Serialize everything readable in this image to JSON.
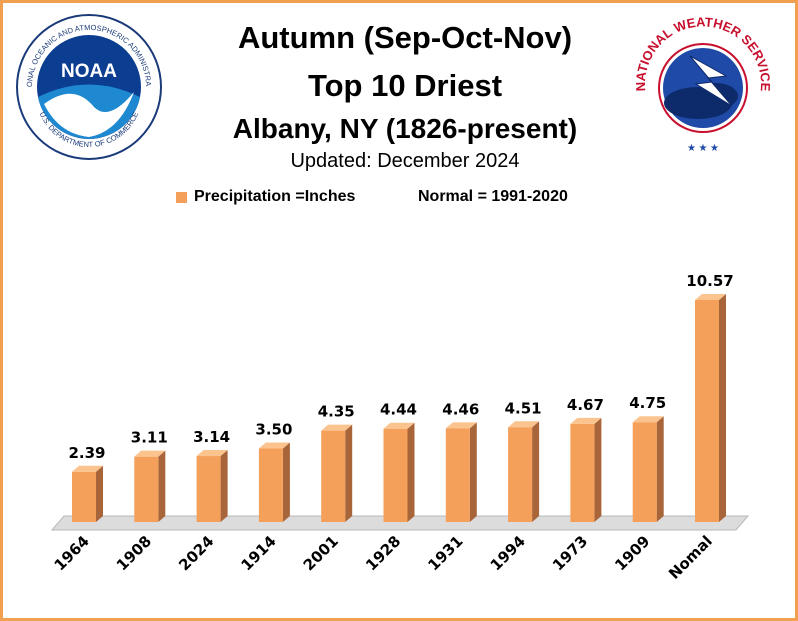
{
  "title": {
    "line1": "Autumn (Sep-Oct-Nov)",
    "line2": "Top 10 Driest",
    "line3": "Albany, NY (1826-present)",
    "updated": "Updated: December 2024"
  },
  "legend": {
    "series_label": "Precipitation =Inches",
    "normal_label": "Normal = 1991-2020"
  },
  "logos": {
    "left": {
      "icon": "noaa-logo-icon",
      "text_center": "NOAA",
      "ring_text": "NATIONAL OCEANIC AND ATMOSPHERIC ADMINISTRATION",
      "ring_bottom": "U.S. DEPARTMENT OF COMMERCE"
    },
    "right": {
      "icon": "nws-logo-icon",
      "ring_text": "NATIONAL WEATHER SERVICE"
    }
  },
  "colors": {
    "bar_front": "#f5a05a",
    "bar_side": "#a8653a",
    "bar_top": "#fbc48e",
    "frame": "#f0a050",
    "floor": "#dcdcdc"
  },
  "chart_data": {
    "type": "bar",
    "categories": [
      "1964",
      "1908",
      "2024",
      "1914",
      "2001",
      "1928",
      "1931",
      "1994",
      "1973",
      "1909",
      "Nomal"
    ],
    "series": [
      {
        "name": "Precipitation =Inches",
        "values": [
          2.39,
          3.11,
          3.14,
          3.5,
          4.35,
          4.44,
          4.46,
          4.51,
          4.67,
          4.75,
          10.57
        ],
        "labels": [
          "2.39",
          "3.11",
          "3.14",
          "3.50",
          "4.35",
          "4.44",
          "4.46",
          "4.51",
          "4.67",
          "4.75",
          "10.57"
        ]
      }
    ],
    "ylim": [
      0,
      10.57
    ],
    "grid": false,
    "legend_position": "top-center"
  }
}
